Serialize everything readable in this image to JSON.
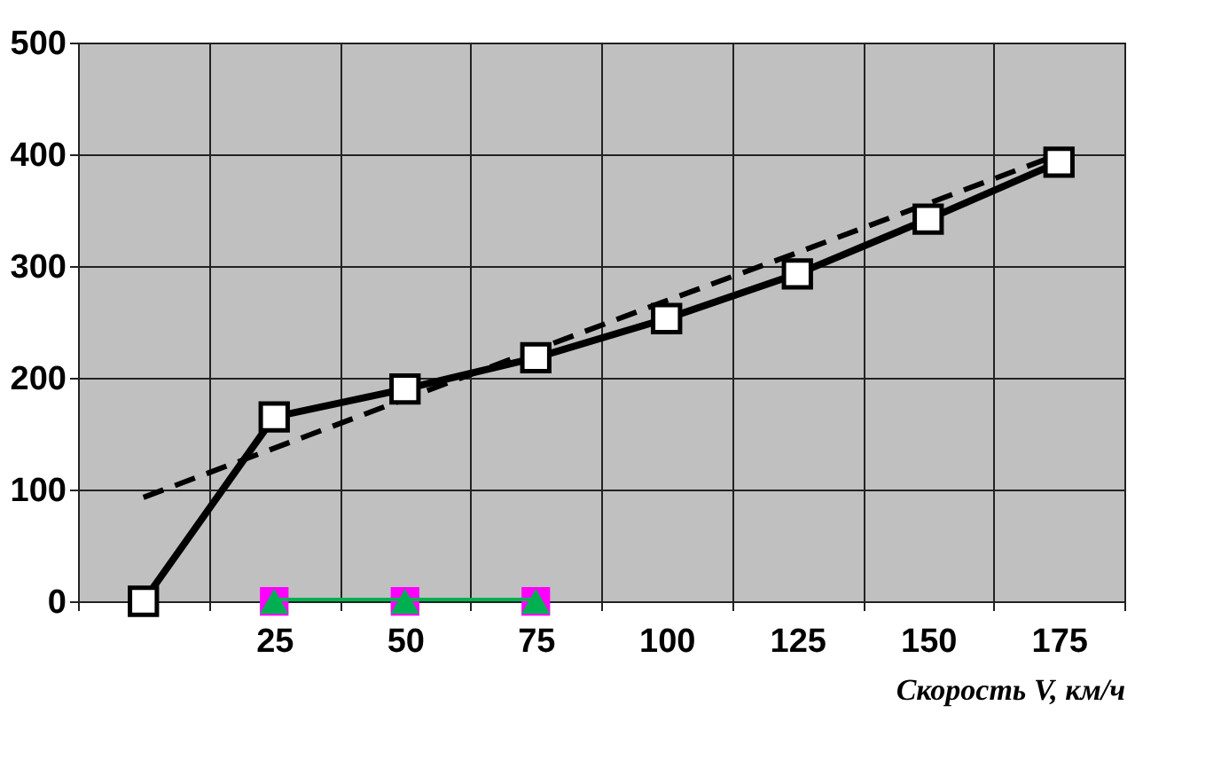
{
  "chart_data": {
    "type": "line",
    "xlabel": "Скорость V, км/ч",
    "categories": [
      null,
      "25",
      "50",
      "75",
      "100",
      "125",
      "150",
      "175"
    ],
    "ylim": [
      0,
      500
    ],
    "yticks": [
      0,
      100,
      200,
      300,
      400,
      500
    ],
    "grid": true,
    "series": [
      {
        "color": "#000000",
        "marker": "none",
        "line_style": "dashed",
        "values": [
          93,
          137,
          181,
          225,
          269,
          312,
          356,
          400
        ]
      },
      {
        "color": "#000000",
        "marker": "square",
        "line_style": "solid",
        "values": [
          0,
          165,
          190,
          218,
          253,
          293,
          342,
          393
        ]
      },
      {
        "type": "scatter",
        "color": "#ff00ff",
        "marker": "square",
        "values": [
          null,
          0,
          0,
          0,
          null,
          null,
          null,
          null
        ]
      },
      {
        "color": "#00b050",
        "marker": "triangle",
        "line_style": "solid",
        "values": [
          null,
          0,
          0,
          0,
          null,
          null,
          null,
          null
        ]
      }
    ]
  }
}
